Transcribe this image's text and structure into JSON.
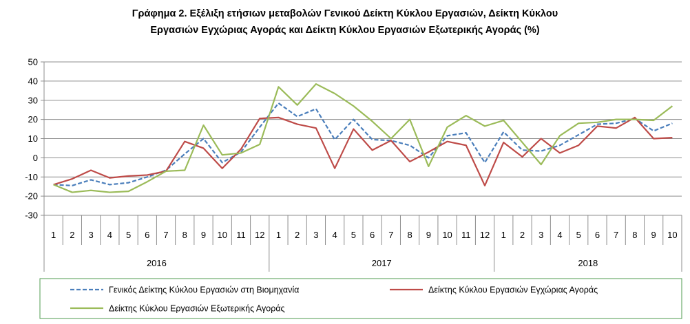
{
  "chart_data": {
    "type": "line",
    "title_line1": "Γράφημα 2. Εξέλιξη ετήσιων μεταβολών Γενικού Δείκτη Κύκλου Εργασιών,  Δείκτη Κύκλου",
    "title_line2": "Εργασιών Εγχώριας Αγοράς και Δείκτη Κύκλου Εργασιών Εξωτερικής Αγοράς  (%)",
    "xlabel": "",
    "ylabel": "",
    "ylim": [
      -30,
      50
    ],
    "yticks": [
      "50",
      "40",
      "30",
      "20",
      "10",
      "0",
      "-10",
      "-20",
      "-30"
    ],
    "grid": true,
    "legend_position": "bottom",
    "month_labels": [
      "1",
      "2",
      "3",
      "4",
      "5",
      "6",
      "7",
      "8",
      "9",
      "10",
      "11",
      "12",
      "1",
      "2",
      "3",
      "4",
      "5",
      "6",
      "7",
      "8",
      "9",
      "10",
      "11",
      "12",
      "1",
      "2",
      "3",
      "4",
      "5",
      "6",
      "7",
      "8",
      "9",
      "10"
    ],
    "year_groups": [
      {
        "label": "2016",
        "count": 12
      },
      {
        "label": "2017",
        "count": 12
      },
      {
        "label": "2018",
        "count": 10
      }
    ],
    "series": [
      {
        "name": "Γενικός Δείκτης Κύκλου Εργασιών στη Βιομηχανία",
        "color": "#4a7ebb",
        "style": "dashed",
        "values": [
          -14,
          -14.5,
          -11.5,
          -14,
          -13,
          -10,
          -6.5,
          2,
          10,
          -2.5,
          3,
          16,
          28.5,
          21.5,
          25.5,
          9.5,
          20,
          9.5,
          9,
          6.5,
          0,
          11.5,
          13,
          -2.5,
          13.5,
          4,
          3.5,
          6.5,
          12,
          17.5,
          18,
          20.5,
          14,
          18
        ]
      },
      {
        "name": "Δείκτης Κύκλου Εργασιών Εγχώριας Αγοράς",
        "color": "#be4b48",
        "style": "solid",
        "values": [
          -14,
          -11,
          -6.5,
          -10.5,
          -9.5,
          -9,
          -7,
          8.5,
          5,
          -5.5,
          4.5,
          20.5,
          21,
          17.5,
          15.5,
          -5.5,
          15,
          4,
          9,
          -2,
          3,
          8.5,
          6.5,
          -14.5,
          8,
          0.5,
          10,
          2.5,
          6.5,
          16.5,
          15.5,
          21,
          10,
          10.5
        ]
      },
      {
        "name": "Δείκτης Κύκλου Εργασιών Εξωτερικής Αγοράς",
        "color": "#9bbb59",
        "style": "solid",
        "values": [
          -14,
          -18,
          -17,
          -18,
          -17.5,
          -12.5,
          -7,
          -6.5,
          17,
          1.5,
          2.5,
          7,
          37,
          27.5,
          38.5,
          33.5,
          27,
          19,
          10,
          20,
          -4.5,
          16,
          22,
          16.5,
          19.5,
          8,
          -3.5,
          11.5,
          18,
          18.5,
          20,
          20,
          19.5,
          27
        ]
      }
    ]
  },
  "colors": {
    "grid": "#8c8c8c",
    "axis": "#8c8c8c",
    "legend_border": "#4f9b4f"
  }
}
